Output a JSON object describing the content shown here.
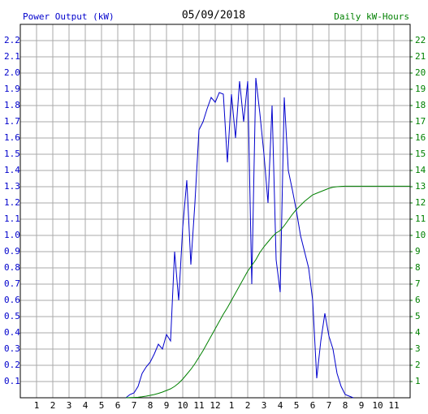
{
  "chart_data": {
    "type": "line",
    "title": "05/09/2018",
    "y_label": "Power Output (kW)",
    "y2_label": "Daily kW-Hours",
    "x": [
      6.5,
      6.75,
      7,
      7.25,
      7.5,
      7.75,
      8,
      8.25,
      8.5,
      8.75,
      9,
      9.25,
      9.5,
      9.75,
      10,
      10.25,
      10.5,
      10.75,
      11,
      11.25,
      11.5,
      11.75,
      12,
      12.25,
      12.5,
      12.75,
      13,
      13.25,
      13.5,
      13.75,
      14,
      14.25,
      14.5,
      14.75,
      15,
      15.25,
      15.5,
      15.75,
      16,
      16.25,
      16.5,
      16.75,
      17,
      17.25,
      17.5,
      17.75,
      18,
      18.25,
      18.5,
      18.75,
      19,
      19.25,
      19.5,
      19.75,
      20,
      20.25,
      20.5,
      24
    ],
    "series": [
      {
        "name": "Power Output (kW)",
        "color": "#0000cc",
        "axis": "y",
        "values": [
          0,
          0.02,
          0.03,
          0.07,
          0.15,
          0.19,
          0.22,
          0.27,
          0.33,
          0.3,
          0.39,
          0.35,
          0.9,
          0.6,
          1.05,
          1.34,
          0.82,
          1.2,
          1.65,
          1.7,
          1.78,
          1.85,
          1.82,
          1.88,
          1.87,
          1.45,
          1.87,
          1.6,
          1.95,
          1.7,
          1.95,
          0.7,
          1.97,
          1.75,
          1.5,
          1.2,
          1.8,
          0.85,
          0.65,
          1.85,
          1.4,
          1.28,
          1.15,
          1.0,
          0.9,
          0.8,
          0.6,
          0.12,
          0.35,
          0.52,
          0.38,
          0.3,
          0.15,
          0.07,
          0.02,
          0.01,
          0,
          null
        ]
      },
      {
        "name": "Daily kW-Hours",
        "color": "#008000",
        "axis": "y2",
        "values": [
          0,
          0.01,
          0.02,
          0.03,
          0.06,
          0.1,
          0.15,
          0.2,
          0.27,
          0.35,
          0.45,
          0.55,
          0.7,
          0.9,
          1.15,
          1.45,
          1.75,
          2.1,
          2.5,
          2.9,
          3.35,
          3.8,
          4.25,
          4.7,
          5.15,
          5.55,
          6.0,
          6.45,
          6.9,
          7.35,
          7.8,
          8.15,
          8.5,
          8.95,
          9.3,
          9.6,
          9.9,
          10.15,
          10.3,
          10.6,
          10.95,
          11.3,
          11.6,
          11.85,
          12.1,
          12.3,
          12.5,
          12.6,
          12.7,
          12.8,
          12.9,
          12.97,
          13.0,
          13.02,
          13.03,
          13.03,
          13.03,
          13.03
        ]
      }
    ],
    "xlim": [
      0,
      24
    ],
    "xticks": [
      1,
      2,
      3,
      4,
      5,
      6,
      7,
      8,
      9,
      10,
      11,
      12,
      {
        "value": 13,
        "label": "1"
      },
      {
        "value": 14,
        "label": "2"
      },
      {
        "value": 15,
        "label": "3"
      },
      {
        "value": 16,
        "label": "4"
      },
      {
        "value": 17,
        "label": "5"
      },
      {
        "value": 18,
        "label": "6"
      },
      {
        "value": 19,
        "label": "7"
      },
      {
        "value": 20,
        "label": "8"
      },
      {
        "value": 21,
        "label": "9"
      },
      {
        "value": 22,
        "label": "10"
      },
      {
        "value": 23,
        "label": "11"
      }
    ],
    "ylim": [
      0,
      2.3
    ],
    "yticks": [
      0.1,
      0.2,
      0.3,
      0.4,
      0.5,
      0.6,
      0.7,
      0.8,
      0.9,
      {
        "value": 1,
        "label": "1.0"
      },
      1.1,
      1.2,
      1.3,
      1.4,
      1.5,
      1.6,
      1.7,
      1.8,
      1.9,
      {
        "value": 2,
        "label": "2.0"
      },
      2.1,
      2.2
    ],
    "y2lim": [
      0,
      23
    ],
    "y2ticks": [
      1,
      2,
      3,
      4,
      5,
      6,
      7,
      8,
      9,
      10,
      11,
      12,
      13,
      14,
      15,
      16,
      17,
      18,
      19,
      20,
      21,
      22
    ],
    "grid": true
  }
}
